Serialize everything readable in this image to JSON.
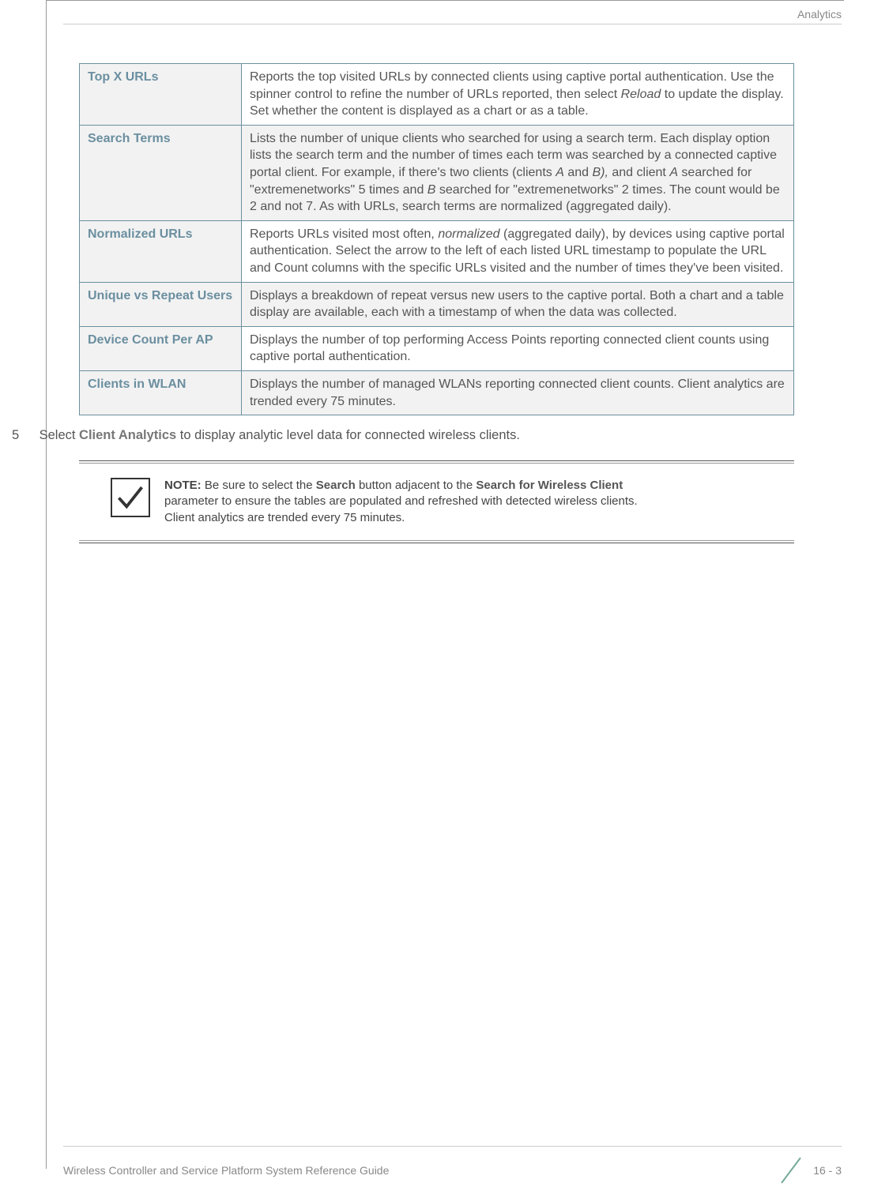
{
  "header": {
    "section": "Analytics"
  },
  "table": {
    "rows": [
      {
        "label": "Top X URLs",
        "desc_parts": [
          {
            "t": "Reports the top visited URLs by connected clients using captive portal authentication. Use the spinner control to refine the number of URLs reported, then select "
          },
          {
            "t": "Reload",
            "italic": true
          },
          {
            "t": " to update the display. Set whether the content is displayed as a chart or as a table."
          }
        ]
      },
      {
        "label": "Search Terms",
        "alt": true,
        "desc_parts": [
          {
            "t": "Lists the number of unique clients who searched for using a search term. Each display option lists the search term and the number of times each term was searched by a connected captive portal client. For example, if there's two clients (clients "
          },
          {
            "t": "A",
            "italic": true
          },
          {
            "t": " and "
          },
          {
            "t": "B),",
            "italic": true
          },
          {
            "t": " and client "
          },
          {
            "t": "A",
            "italic": true
          },
          {
            "t": " searched for \"extremenetworks\" 5 times and "
          },
          {
            "t": "B",
            "italic": true
          },
          {
            "t": " searched for \"extremenetworks\" 2 times. The count would be 2 and not 7. As with URLs, search terms are normalized (aggregated daily)."
          }
        ]
      },
      {
        "label": "Normalized URLs",
        "desc_parts": [
          {
            "t": "Reports URLs visited most often, "
          },
          {
            "t": "normalized",
            "italic": true
          },
          {
            "t": " (aggregated daily), by devices using captive portal authentication. Select the arrow to the left of each listed URL timestamp to populate the URL and Count columns with the specific URLs visited and the number of times they've been visited."
          }
        ]
      },
      {
        "label": "Unique vs Repeat Users",
        "alt": true,
        "desc_parts": [
          {
            "t": "Displays a breakdown of repeat versus new users to the captive portal. Both a chart and a table display are available, each with a timestamp of when the data was collected."
          }
        ]
      },
      {
        "label": "Device Count Per AP",
        "desc_parts": [
          {
            "t": "Displays the number of top performing Access Points reporting connected client counts using captive portal authentication."
          }
        ]
      },
      {
        "label": "Clients in WLAN",
        "alt": true,
        "desc_parts": [
          {
            "t": "Displays the number of managed WLANs reporting connected client counts. Client analytics are trended every 75 minutes."
          }
        ]
      }
    ]
  },
  "step": {
    "number": "5",
    "prefix": "Select ",
    "bold": "Client Analytics",
    "suffix": " to display analytic level data for connected wireless clients."
  },
  "note": {
    "label": "NOTE:",
    "p1": " Be sure to select the ",
    "b1": "Search",
    "p2": " button adjacent to the ",
    "b2": "Search for Wireless Client",
    "p3": " parameter to ensure the tables are populated and refreshed with detected wireless clients. Client analytics are trended every 75 minutes."
  },
  "footer": {
    "title": "Wireless Controller and Service Platform System Reference Guide",
    "page": "16 - 3"
  },
  "colors": {
    "label_text": "#6b8fa0",
    "border": "#6b8fa0",
    "alt_bg": "#f2f2f2"
  }
}
